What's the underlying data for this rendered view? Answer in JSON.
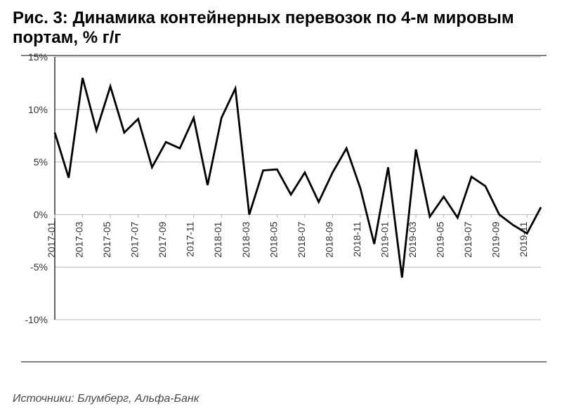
{
  "title": "Рис. 3: Динамика контейнерных перевозок по 4-м мировым портам, % г/г",
  "source": "Источники: Блумберг, Альфа-Банк",
  "chart": {
    "type": "line",
    "background_color": "#ffffff",
    "grid_color": "#b8b8b8",
    "axis_color": "#000000",
    "line_color": "#000000",
    "line_width": 2.8,
    "tick_label_color": "#333333",
    "tick_label_fontsize": 14,
    "title_fontsize": 24,
    "source_fontsize": 16,
    "ylim": [
      -10,
      15
    ],
    "ytick_step": 5,
    "ytick_suffix": "%",
    "xtick_step": 2,
    "xtick_rotation": -90,
    "x": [
      "2017-01",
      "2017-02",
      "2017-03",
      "2017-04",
      "2017-05",
      "2017-06",
      "2017-07",
      "2017-08",
      "2017-09",
      "2017-10",
      "2017-11",
      "2017-12",
      "2018-01",
      "2018-02",
      "2018-03",
      "2018-04",
      "2018-05",
      "2018-06",
      "2018-07",
      "2018-08",
      "2018-09",
      "2018-10",
      "2018-11",
      "2018-12",
      "2019-01",
      "2019-02",
      "2019-03",
      "2019-04",
      "2019-05",
      "2019-06",
      "2019-07",
      "2019-08",
      "2019-09",
      "2019-10",
      "2019-11",
      "2019-12"
    ],
    "y": [
      7.8,
      3.5,
      13.0,
      8.0,
      12.2,
      7.8,
      9.1,
      4.5,
      6.9,
      6.3,
      9.2,
      2.8,
      9.2,
      12.0,
      0.0,
      4.2,
      4.3,
      1.9,
      4.0,
      1.2,
      4.0,
      6.3,
      2.5,
      -2.8,
      4.5,
      -6.0,
      6.2,
      -0.2,
      1.7,
      -0.3,
      3.6,
      2.7,
      0.0,
      -1.0,
      -1.8,
      0.7
    ]
  }
}
